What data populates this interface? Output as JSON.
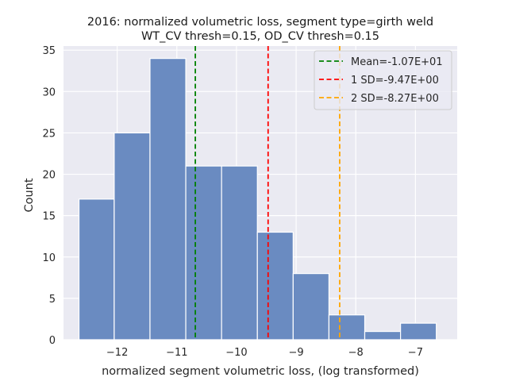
{
  "chart_data": {
    "type": "bar",
    "title_line1": "2016: normalized volumetric loss, segment type=girth weld",
    "title_line2": "WT_CV thresh=0.15, OD_CV thresh=0.15",
    "xlabel": "normalized segment volumetric loss, (log transformed)",
    "ylabel": "Count",
    "xlim": [
      -12.9,
      -6.3
    ],
    "ylim": [
      0,
      35.5
    ],
    "x_ticks": [
      -12,
      -11,
      -10,
      -9,
      -8,
      -7
    ],
    "x_tick_labels": [
      "−12",
      "−11",
      "−10",
      "−9",
      "−8",
      "−7"
    ],
    "y_ticks": [
      0,
      5,
      10,
      15,
      20,
      25,
      30,
      35
    ],
    "y_tick_labels": [
      "0",
      "5",
      "10",
      "15",
      "20",
      "25",
      "30",
      "35"
    ],
    "bins": [
      {
        "x0": -12.64,
        "x1": -12.05,
        "count": 17
      },
      {
        "x0": -12.05,
        "x1": -11.45,
        "count": 25
      },
      {
        "x0": -11.45,
        "x1": -10.85,
        "count": 34
      },
      {
        "x0": -10.85,
        "x1": -10.25,
        "count": 21
      },
      {
        "x0": -10.25,
        "x1": -9.65,
        "count": 21
      },
      {
        "x0": -9.65,
        "x1": -9.05,
        "count": 13
      },
      {
        "x0": -9.05,
        "x1": -8.45,
        "count": 8
      },
      {
        "x0": -8.45,
        "x1": -7.85,
        "count": 3
      },
      {
        "x0": -7.85,
        "x1": -7.25,
        "count": 1
      },
      {
        "x0": -7.25,
        "x1": -6.65,
        "count": 2
      }
    ],
    "bar_color": "#6a8bc1",
    "vlines": [
      {
        "label": "Mean=-1.07E+01",
        "x": -10.69,
        "color": "#008000"
      },
      {
        "label": "1 SD=-9.47E+00",
        "x": -9.47,
        "color": "#ff0000"
      },
      {
        "label": "2 SD=-8.27E+00",
        "x": -8.27,
        "color": "#ffa500"
      }
    ],
    "legend_position": "top-right",
    "grid": true
  }
}
